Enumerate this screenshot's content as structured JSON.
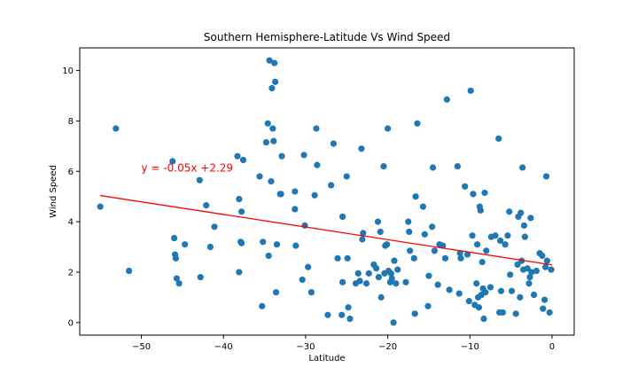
{
  "chart_data": {
    "type": "scatter",
    "title": "Southern Hemisphere-Latitude Vs Wind Speed",
    "xlabel": "Latitude",
    "ylabel": "Wind Speed",
    "xlim": [
      -57.5,
      2.7
    ],
    "ylim": [
      -0.5,
      10.9
    ],
    "x_ticks": [
      -50,
      -40,
      -30,
      -20,
      -10,
      0
    ],
    "y_ticks": [
      0,
      2,
      4,
      6,
      8,
      10
    ],
    "grid": false,
    "point_color": "#1f77b4",
    "line_color": "#ff0000",
    "annotation": {
      "text": "y = -0.05x +2.29",
      "x": -50,
      "y": 6.0,
      "color": "#ff0000"
    },
    "regression": {
      "slope": -0.05,
      "intercept": 2.29,
      "x_start": -55,
      "x_end": 0
    },
    "points": [
      [
        -55,
        4.6
      ],
      [
        -53.1,
        7.7
      ],
      [
        -51.5,
        2.05
      ],
      [
        -46.2,
        6.4
      ],
      [
        -46,
        3.35
      ],
      [
        -45.9,
        2.7
      ],
      [
        -45.8,
        2.55
      ],
      [
        -45.7,
        1.75
      ],
      [
        -45.4,
        1.55
      ],
      [
        -44.7,
        3.1
      ],
      [
        -42.9,
        5.65
      ],
      [
        -42.8,
        1.8
      ],
      [
        -42.1,
        4.65
      ],
      [
        -41.6,
        3.0
      ],
      [
        -41.1,
        3.8
      ],
      [
        -38.3,
        6.6
      ],
      [
        -38.1,
        4.9
      ],
      [
        -38.1,
        2.0
      ],
      [
        -37.9,
        3.2
      ],
      [
        -37.8,
        4.4
      ],
      [
        -37.8,
        3.15
      ],
      [
        -37.6,
        6.45
      ],
      [
        -35.6,
        5.8
      ],
      [
        -35.3,
        0.65
      ],
      [
        -35.2,
        3.2
      ],
      [
        -34.8,
        7.15
      ],
      [
        -34.6,
        7.9
      ],
      [
        -34.5,
        2.65
      ],
      [
        -34.4,
        10.4
      ],
      [
        -34.2,
        5.6
      ],
      [
        -34.1,
        9.3
      ],
      [
        -34,
        7.7
      ],
      [
        -33.9,
        7.2
      ],
      [
        -33.8,
        10.3
      ],
      [
        -33.7,
        9.55
      ],
      [
        -33.6,
        1.2
      ],
      [
        -33.5,
        3.1
      ],
      [
        -33.1,
        5.1
      ],
      [
        -33,
        5.1
      ],
      [
        -32.9,
        6.6
      ],
      [
        -31.3,
        5.2
      ],
      [
        -31.3,
        4.5
      ],
      [
        -31.2,
        3.05
      ],
      [
        -30.4,
        1.7
      ],
      [
        -30.2,
        6.65
      ],
      [
        -30.1,
        3.85
      ],
      [
        -29.7,
        2.2
      ],
      [
        -29.3,
        1.2
      ],
      [
        -28.9,
        5.05
      ],
      [
        -28.7,
        7.7
      ],
      [
        -28.6,
        6.25
      ],
      [
        -27.3,
        0.3
      ],
      [
        -26.9,
        5.45
      ],
      [
        -26.6,
        7.1
      ],
      [
        -26.1,
        2.55
      ],
      [
        -25.6,
        0.3
      ],
      [
        -25.5,
        1.6
      ],
      [
        -25.5,
        4.2
      ],
      [
        -25,
        5.8
      ],
      [
        -24.9,
        2.55
      ],
      [
        -24.8,
        0.6
      ],
      [
        -24.6,
        0.15
      ],
      [
        -23.9,
        1.55
      ],
      [
        -23.6,
        1.95
      ],
      [
        -23.4,
        1.65
      ],
      [
        -23.2,
        6.9
      ],
      [
        -23.1,
        3.3
      ],
      [
        -23.0,
        3.55
      ],
      [
        -22.6,
        1.55
      ],
      [
        -22.3,
        1.95
      ],
      [
        -21.7,
        2.3
      ],
      [
        -21.4,
        2.15
      ],
      [
        -21.2,
        4.0
      ],
      [
        -21.1,
        1.8
      ],
      [
        -20.9,
        3.6
      ],
      [
        -20.8,
        1.0
      ],
      [
        -20.5,
        6.2
      ],
      [
        -20.4,
        1.95
      ],
      [
        -20.3,
        3.05
      ],
      [
        -20.1,
        3.1
      ],
      [
        -20.0,
        7.7
      ],
      [
        -19.9,
        2.05
      ],
      [
        -19.7,
        1.6
      ],
      [
        -19.6,
        1.95
      ],
      [
        -19.5,
        1.75
      ],
      [
        -19.3,
        0.0
      ],
      [
        -19.2,
        2.45
      ],
      [
        -19.0,
        1.55
      ],
      [
        -18.8,
        2.1
      ],
      [
        -17.8,
        1.6
      ],
      [
        -17.5,
        4.0
      ],
      [
        -17.4,
        3.6
      ],
      [
        -17.3,
        2.85
      ],
      [
        -16.8,
        2.55
      ],
      [
        -16.7,
        0.35
      ],
      [
        -16.6,
        5.0
      ],
      [
        -16.4,
        7.9
      ],
      [
        -15.7,
        4.6
      ],
      [
        -15.5,
        3.5
      ],
      [
        -15.1,
        0.65
      ],
      [
        -15.0,
        1.85
      ],
      [
        -14.6,
        3.8
      ],
      [
        -14.5,
        6.15
      ],
      [
        -14.3,
        2.85
      ],
      [
        -13.9,
        1.5
      ],
      [
        -13.7,
        3.1
      ],
      [
        -13.3,
        3.05
      ],
      [
        -13.0,
        2.55
      ],
      [
        -12.8,
        8.85
      ],
      [
        -12.5,
        1.3
      ],
      [
        -11.5,
        6.2
      ],
      [
        -11.3,
        1.15
      ],
      [
        -11.2,
        2.75
      ],
      [
        -11.1,
        2.55
      ],
      [
        -10.6,
        5.4
      ],
      [
        -10.3,
        2.7
      ],
      [
        -10.1,
        0.85
      ],
      [
        -9.9,
        9.2
      ],
      [
        -9.7,
        3.45
      ],
      [
        -9.6,
        5.1
      ],
      [
        -9.4,
        0.7
      ],
      [
        -9.2,
        1.55
      ],
      [
        -9.1,
        3.1
      ],
      [
        -9.0,
        1.0
      ],
      [
        -8.9,
        0.6
      ],
      [
        -8.8,
        4.6
      ],
      [
        -8.7,
        4.45
      ],
      [
        -8.6,
        1.1
      ],
      [
        -8.5,
        2.4
      ],
      [
        -8.4,
        1.35
      ],
      [
        -8.3,
        0.15
      ],
      [
        -8.2,
        5.15
      ],
      [
        -8.1,
        1.2
      ],
      [
        -8.0,
        2.85
      ],
      [
        -7.5,
        1.4
      ],
      [
        -7.4,
        3.4
      ],
      [
        -6.9,
        3.45
      ],
      [
        -6.5,
        7.3
      ],
      [
        -6.4,
        0.4
      ],
      [
        -6.3,
        3.25
      ],
      [
        -6.2,
        1.25
      ],
      [
        -6.0,
        0.4
      ],
      [
        -5.7,
        3.1
      ],
      [
        -5.4,
        3.45
      ],
      [
        -5.2,
        4.4
      ],
      [
        -5.1,
        1.9
      ],
      [
        -4.9,
        1.25
      ],
      [
        -4.4,
        0.35
      ],
      [
        -4.2,
        2.3
      ],
      [
        -4.1,
        4.2
      ],
      [
        -3.9,
        1.0
      ],
      [
        -3.8,
        4.35
      ],
      [
        -3.7,
        2.45
      ],
      [
        -3.6,
        6.15
      ],
      [
        -3.5,
        2.1
      ],
      [
        -3.4,
        3.85
      ],
      [
        -3.3,
        3.4
      ],
      [
        -3.0,
        2.15
      ],
      [
        -2.8,
        1.55
      ],
      [
        -2.7,
        1.8
      ],
      [
        -2.6,
        4.15
      ],
      [
        -2.5,
        2.0
      ],
      [
        -2.2,
        1.1
      ],
      [
        -1.9,
        2.05
      ],
      [
        -1.5,
        2.75
      ],
      [
        -1.2,
        2.65
      ],
      [
        -1.1,
        0.55
      ],
      [
        -0.9,
        0.9
      ],
      [
        -0.8,
        2.2
      ],
      [
        -0.7,
        5.8
      ],
      [
        -0.6,
        2.45
      ],
      [
        -0.3,
        0.4
      ],
      [
        -0.1,
        2.1
      ]
    ]
  }
}
